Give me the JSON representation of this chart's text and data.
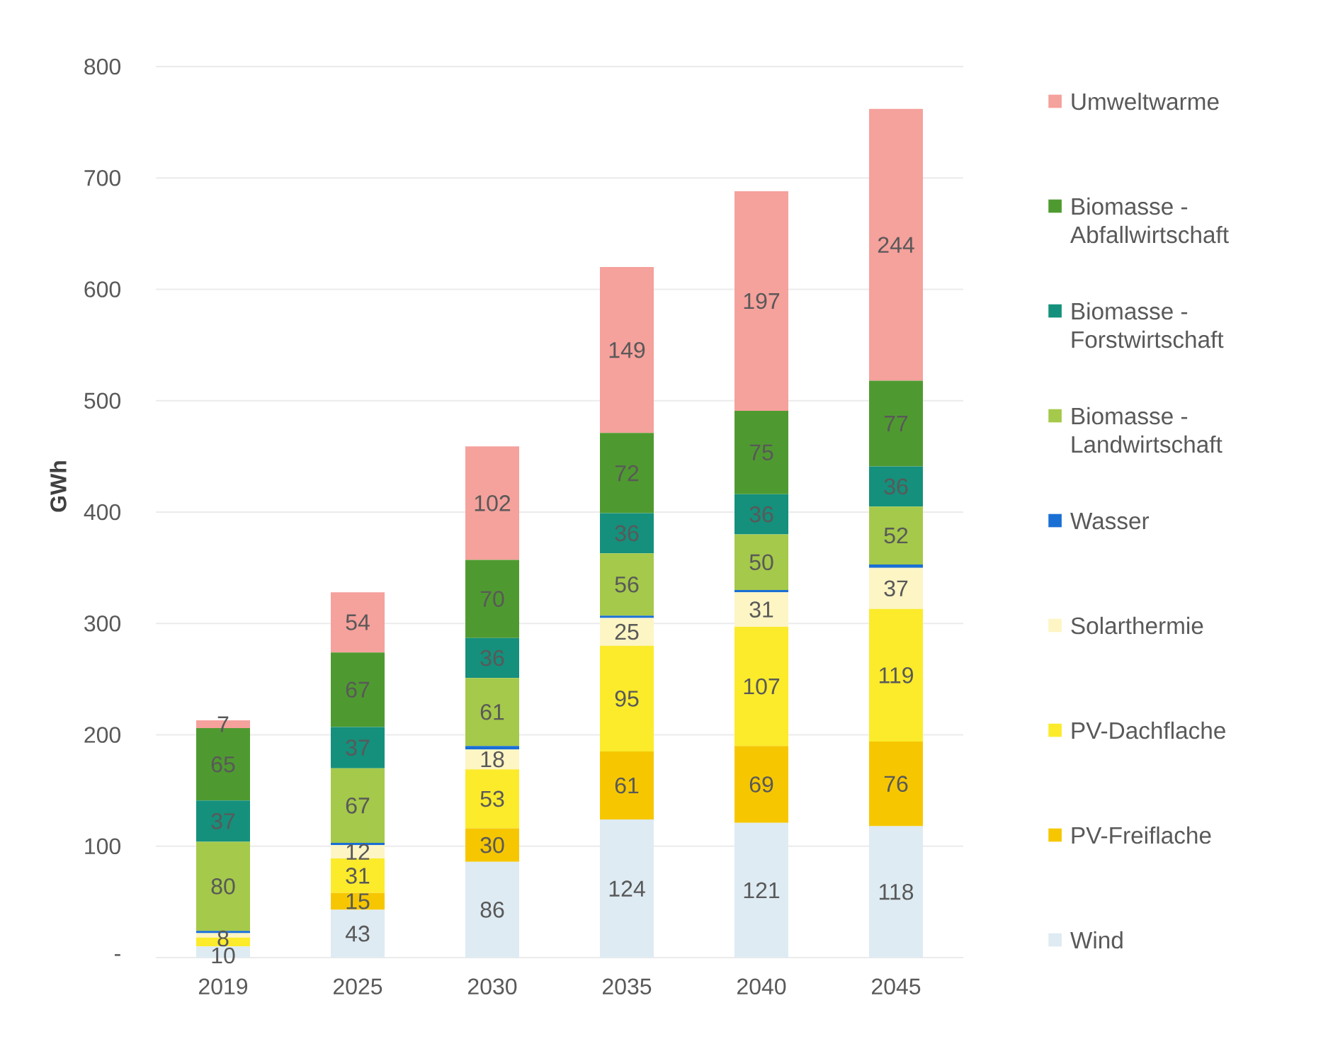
{
  "chart_data": {
    "type": "bar",
    "stacked": true,
    "ylabel": "GWh",
    "categories": [
      "2019",
      "2025",
      "2030",
      "2035",
      "2040",
      "2045"
    ],
    "ylim": [
      0,
      800
    ],
    "yticks": [
      {
        "value": 0,
        "label": "-"
      },
      100,
      200,
      300,
      400,
      500,
      600,
      700,
      800
    ],
    "grid": "y",
    "legend": "right",
    "series": [
      {
        "name": "Wind",
        "color": "#deebf3",
        "values": [
          10,
          43,
          86,
          124,
          121,
          118
        ],
        "value_labels": [
          "10",
          "43",
          "86",
          "124",
          "121",
          "118"
        ]
      },
      {
        "name": "PV-Freiflache",
        "color": "#f6c700",
        "values": [
          0,
          15,
          30,
          61,
          69,
          76
        ],
        "value_labels": [
          null,
          "15",
          "30",
          "61",
          "69",
          "76"
        ]
      },
      {
        "name": "PV-Dachflache",
        "color": "#fbeb2b",
        "values": [
          8,
          31,
          53,
          95,
          107,
          119
        ],
        "value_labels": [
          "8",
          "31",
          "53",
          "95",
          "107",
          "119"
        ]
      },
      {
        "name": "Solarthermie",
        "color": "#fdf5c4",
        "values": [
          4,
          12,
          18,
          25,
          31,
          37
        ],
        "value_labels": [
          null,
          "12",
          "18",
          "25",
          "31",
          "37"
        ]
      },
      {
        "name": "Wasser",
        "color": "#1a6fd4",
        "values": [
          2,
          2,
          3,
          2,
          2,
          3
        ]
      },
      {
        "name": "Biomasse - Landwirtschaft",
        "color": "#a5c94a",
        "values": [
          80,
          67,
          61,
          56,
          50,
          52
        ],
        "value_labels": [
          "80",
          "67",
          "61",
          "56",
          "50",
          "52"
        ]
      },
      {
        "name": "Biomasse - Forstwirtschaft",
        "color": "#15907c",
        "values": [
          37,
          37,
          36,
          36,
          36,
          36
        ],
        "value_labels": [
          "37",
          "37",
          "36",
          "36",
          "36",
          "36"
        ]
      },
      {
        "name": "Biomasse - Abfallwirtschaft",
        "color": "#4f9a30",
        "values": [
          65,
          67,
          70,
          72,
          75,
          77
        ],
        "value_labels": [
          "65",
          "67",
          "70",
          "72",
          "75",
          "77"
        ]
      },
      {
        "name": "Umweltwarme",
        "color": "#f5a19c",
        "values": [
          7,
          54,
          102,
          149,
          197,
          244
        ],
        "value_labels": [
          "7",
          "54",
          "102",
          "149",
          "197",
          "244"
        ]
      }
    ]
  }
}
